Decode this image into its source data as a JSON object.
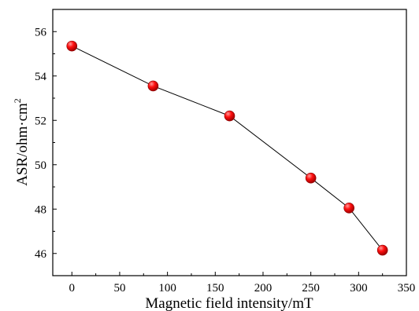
{
  "chart_data": {
    "type": "line",
    "title": "",
    "xlabel": "Magnetic field intensity/mT",
    "ylabel": "ASR/ohm·cm",
    "ylabel_superscript": "2",
    "xlim": [
      -20,
      350
    ],
    "ylim": [
      45,
      57
    ],
    "xticks": [
      0,
      50,
      100,
      150,
      200,
      250,
      300,
      350
    ],
    "yticks": [
      46,
      48,
      50,
      52,
      54,
      56
    ],
    "grid": false,
    "legend": "none",
    "series": [
      {
        "x": [
          0,
          85,
          165,
          250,
          290,
          325
        ],
        "y": [
          55.35,
          53.55,
          52.2,
          49.4,
          48.05,
          46.15
        ]
      }
    ],
    "colors": {
      "marker": "#e00000",
      "marker_highlight": "#ff9a9a",
      "line": "#000000",
      "axis": "#000000"
    },
    "marker_shape": "sphere"
  }
}
